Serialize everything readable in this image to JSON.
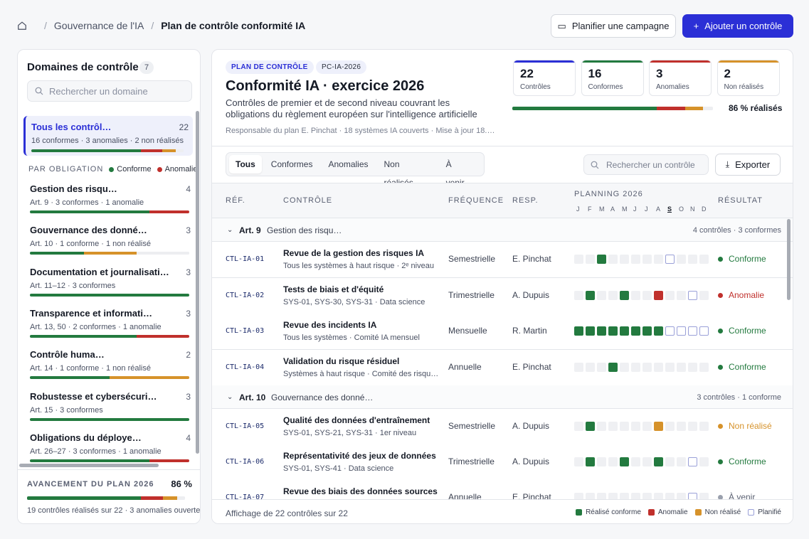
{
  "breadcrumb": {
    "parent": "Gouvernance de l'IA",
    "current": "Plan de contrôle conformité IA"
  },
  "actions": {
    "plan_campaign": "Planifier une campagne",
    "add_control": "Ajouter un contrôle"
  },
  "sidebar": {
    "title": "Domaines de contrôle",
    "count": "7",
    "search_placeholder": "Rechercher un domaine",
    "all": {
      "label": "Tous les contrôl…",
      "count": "22",
      "summary": "16 conformes · 3 anomalies · 2 non réalisés",
      "bar": [
        0.72,
        0.14,
        0.09,
        0.05
      ]
    },
    "section_label": "PAR OBLIGATION",
    "legend": {
      "conform": "Conforme",
      "anomaly": "Anomalie"
    },
    "domains": [
      {
        "label": "Gestion des risqu…",
        "count": "4",
        "summary": "Art. 9 · 3 conformes · 1 anomalie",
        "bar": [
          0.75,
          0.25,
          0,
          0
        ]
      },
      {
        "label": "Gouvernance des donné…",
        "count": "3",
        "summary": "Art. 10 · 1 conforme · 1 non réalisé",
        "bar": [
          0.34,
          0,
          0.33,
          0.33
        ]
      },
      {
        "label": "Documentation et journalisati…",
        "count": "3",
        "summary": "Art. 11–12 · 3 conformes",
        "bar": [
          1,
          0,
          0,
          0
        ]
      },
      {
        "label": "Transparence et informati…",
        "count": "3",
        "summary": "Art. 13, 50 · 2 conformes · 1 anomalie",
        "bar": [
          0.67,
          0.33,
          0,
          0
        ]
      },
      {
        "label": "Contrôle huma…",
        "count": "2",
        "summary": "Art. 14 · 1 conforme · 1 non réalisé",
        "bar": [
          0.5,
          0,
          0.5,
          0
        ]
      },
      {
        "label": "Robustesse et cybersécuri…",
        "count": "3",
        "summary": "Art. 15 · 3 conformes",
        "bar": [
          1,
          0,
          0,
          0
        ]
      },
      {
        "label": "Obligations du déploye…",
        "count": "4",
        "summary": "Art. 26–27 · 3 conformes · 1 anomalie",
        "bar": [
          0.75,
          0.25,
          0,
          0
        ]
      }
    ],
    "footer": {
      "label": "AVANCEMENT DU PLAN 2026",
      "percent": "86 %",
      "summary": "19 contrôles réalisés sur 22 · 3 anomalies ouvertes",
      "bar": [
        0.72,
        0.14,
        0.09,
        0.05
      ]
    }
  },
  "plan": {
    "tag1": "PLAN DE CONTRÔLE",
    "tag2": "PC-IA-2026",
    "title": "Conformité IA · exercice 2026",
    "description": "Contrôles de premier et de second niveau couvrant les obligations du règlement européen sur l'intelligence artificielle",
    "meta": "Responsable du plan E. Pinchat · 18 systèmes IA couverts · Mise à jour 18.…",
    "kpis": [
      {
        "value": "22",
        "label": "Contrôles",
        "color": "#2b2fd6"
      },
      {
        "value": "16",
        "label": "Conformes",
        "color": "#237a3f"
      },
      {
        "value": "3",
        "label": "Anomalies",
        "color": "#c0302c"
      },
      {
        "value": "2",
        "label": "Non réalisés",
        "color": "#d6922a"
      }
    ],
    "progress": {
      "label": "86 % réalisés",
      "segments": [
        0.72,
        0.14,
        0.09,
        0.05
      ]
    }
  },
  "filters": {
    "tabs": [
      "Tous",
      "Conformes",
      "Anomalies",
      "Non réalisés",
      "À venir"
    ],
    "active": 0
  },
  "table_search": "Rechercher un contrôle",
  "export": "Exporter",
  "columns": {
    "ref": "RÉF.",
    "control": "CONTRÔLE",
    "frequency": "FRÉQUENCE",
    "owner": "RESP.",
    "planning": "PLANNING 2026",
    "result": "RÉSULTAT"
  },
  "months": [
    "J",
    "F",
    "M",
    "A",
    "M",
    "J",
    "J",
    "A",
    "S",
    "O",
    "N",
    "D"
  ],
  "current_month_index": 8,
  "groups": [
    {
      "article": "Art. 9",
      "domain": "Gestion des risqu…",
      "count": "4 contrôles · 3 conformes"
    },
    {
      "article": "Art. 10",
      "domain": "Gouvernance des donné…",
      "count": "3 contrôles · 1 conforme"
    }
  ],
  "rows": [
    {
      "ref": "CTL-IA-01",
      "name": "Revue de la gestion des risques IA",
      "sub": "Tous les systèmes à haut risque · 2ᵉ niveau",
      "freq": "Semestrielle",
      "owner": "E. Pinchat",
      "plan": [
        "e",
        "e",
        "g",
        "e",
        "e",
        "e",
        "e",
        "e",
        "p",
        "e",
        "e",
        "e"
      ],
      "result": "Conforme",
      "status": "conform"
    },
    {
      "ref": "CTL-IA-02",
      "name": "Tests de biais et d'équité",
      "sub": "SYS-01, SYS-30, SYS-31 · Data science",
      "freq": "Trimestrielle",
      "owner": "A. Dupuis",
      "plan": [
        "e",
        "g",
        "e",
        "e",
        "g",
        "e",
        "e",
        "r",
        "e",
        "e",
        "p",
        "e"
      ],
      "result": "Anomalie",
      "status": "anomaly"
    },
    {
      "ref": "CTL-IA-03",
      "name": "Revue des incidents IA",
      "sub": "Tous les systèmes · Comité IA mensuel",
      "freq": "Mensuelle",
      "owner": "R. Martin",
      "plan": [
        "g",
        "g",
        "g",
        "g",
        "g",
        "g",
        "g",
        "g",
        "p",
        "p",
        "p",
        "p"
      ],
      "result": "Conforme",
      "status": "conform"
    },
    {
      "ref": "CTL-IA-04",
      "name": "Validation du risque résiduel",
      "sub": "Systèmes à haut risque · Comité des risqu…",
      "freq": "Annuelle",
      "owner": "E. Pinchat",
      "plan": [
        "e",
        "e",
        "e",
        "g",
        "e",
        "e",
        "e",
        "e",
        "e",
        "e",
        "e",
        "e"
      ],
      "result": "Conforme",
      "status": "conform"
    },
    {
      "ref": "CTL-IA-05",
      "name": "Qualité des données d'entraînement",
      "sub": "SYS-01, SYS-21, SYS-31 · 1er niveau",
      "freq": "Semestrielle",
      "owner": "A. Dupuis",
      "plan": [
        "e",
        "g",
        "e",
        "e",
        "e",
        "e",
        "e",
        "o",
        "e",
        "e",
        "e",
        "e"
      ],
      "result": "Non réalisé",
      "status": "missed"
    },
    {
      "ref": "CTL-IA-06",
      "name": "Représentativité des jeux de données",
      "sub": "SYS-01, SYS-41 · Data science",
      "freq": "Trimestrielle",
      "owner": "A. Dupuis",
      "plan": [
        "e",
        "g",
        "e",
        "e",
        "g",
        "e",
        "e",
        "g",
        "e",
        "e",
        "p",
        "e"
      ],
      "result": "Conforme",
      "status": "conform"
    },
    {
      "ref": "CTL-IA-07",
      "name": "Revue des biais des données sources",
      "sub": "",
      "freq": "Annuelle",
      "owner": "E. Pinchat",
      "plan": [
        "e",
        "e",
        "e",
        "e",
        "e",
        "e",
        "e",
        "e",
        "e",
        "e",
        "p",
        "e"
      ],
      "result": "À venir",
      "status": "upcoming"
    }
  ],
  "footer": {
    "label": "Affichage de 22 contrôles sur 22",
    "legend": [
      "Réalisé conforme",
      "Anomalie",
      "Non réalisé",
      "Planifié"
    ]
  },
  "colors": {
    "conform": "#237a3f",
    "anomaly": "#c0302c",
    "missed": "#d6922a",
    "upcoming": "#9aa0ad",
    "accent": "#2b2fd6"
  }
}
